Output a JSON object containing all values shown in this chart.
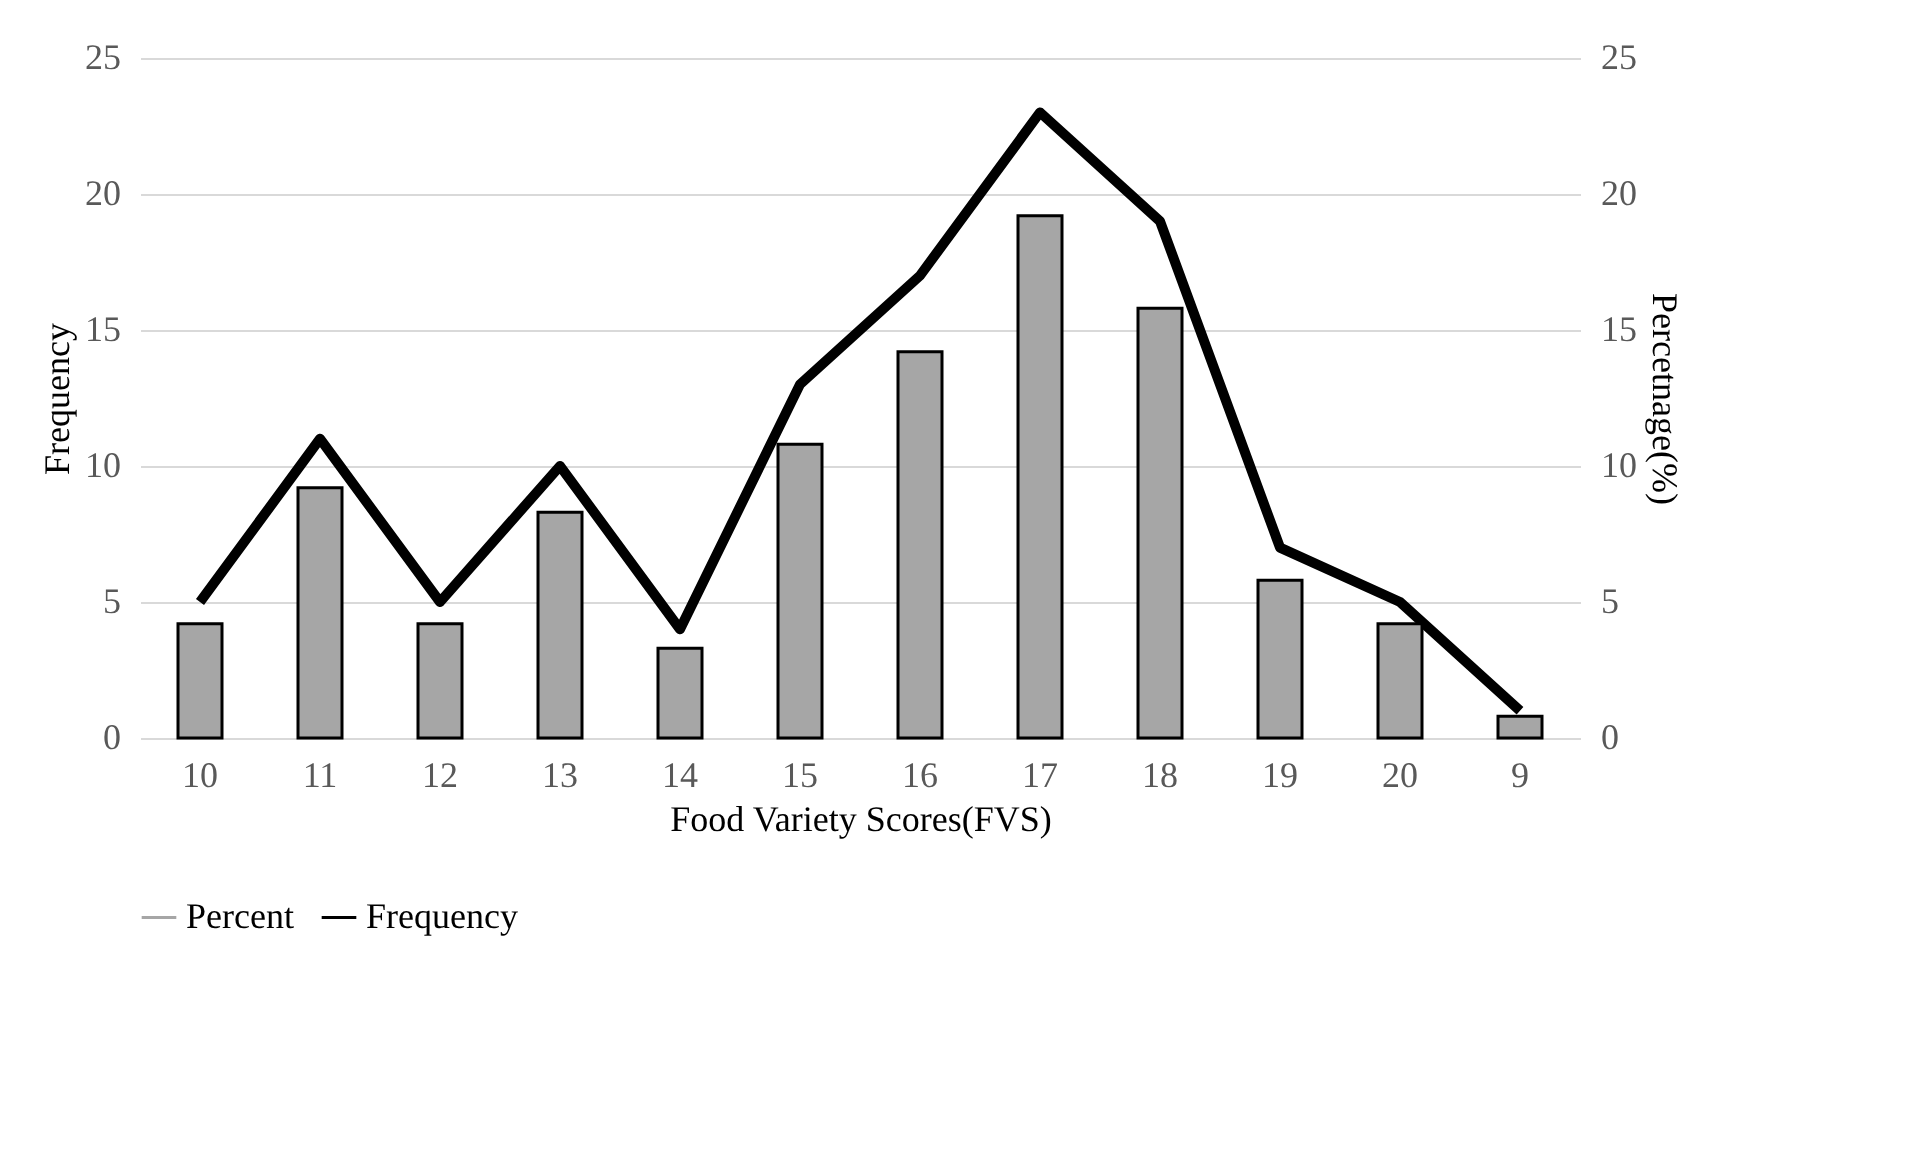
{
  "chart_data": {
    "type": "bar",
    "xlabel": "Food Variety Scores(FVS)",
    "ylabel": "Frequency",
    "y2label": "Percetnage(%)",
    "categories": [
      "10",
      "11",
      "12",
      "13",
      "14",
      "15",
      "16",
      "17",
      "18",
      "19",
      "20",
      "9"
    ],
    "series": [
      {
        "name": "Percent",
        "axis": "y2",
        "color": "#a6a6a6",
        "values": [
          4.2,
          9.2,
          4.2,
          8.3,
          3.3,
          10.8,
          14.2,
          19.2,
          15.8,
          5.8,
          4.2,
          0.8
        ]
      },
      {
        "name": "Frequency",
        "type": "line",
        "color": "#000000",
        "values": [
          5,
          11,
          5,
          10,
          4,
          13,
          17,
          23,
          19,
          7,
          5,
          1
        ]
      }
    ],
    "ylim": [
      0,
      25
    ],
    "yticks": [
      0,
      5,
      10,
      15,
      20,
      25
    ],
    "y2lim": [
      0,
      25
    ],
    "y2ticks": [
      0,
      5,
      10,
      15,
      20,
      25
    ],
    "grid": "y",
    "legend": "bottom"
  }
}
